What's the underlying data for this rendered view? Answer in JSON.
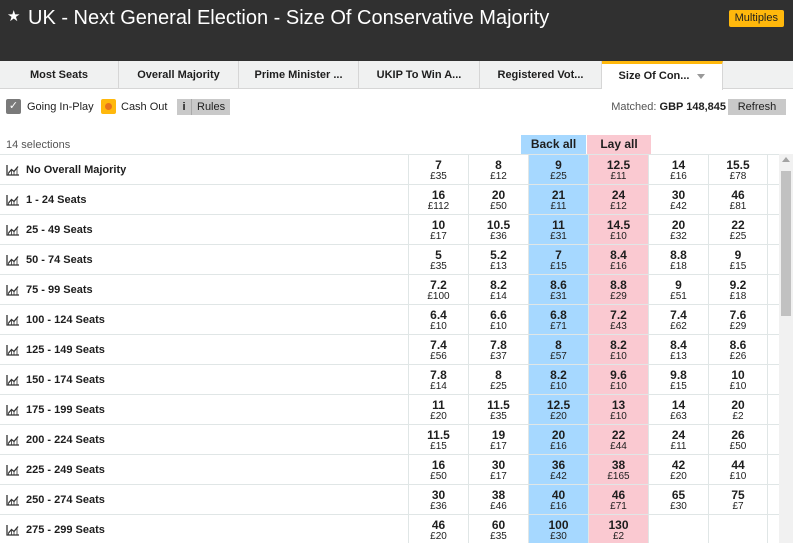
{
  "header": {
    "star_icon": "star-icon",
    "title": "UK - Next General Election - Size Of Conservative Majority",
    "multiples_label": "Multiples"
  },
  "tabs": [
    {
      "label": "Most Seats",
      "active": false
    },
    {
      "label": "Overall Majority",
      "active": false
    },
    {
      "label": "Prime Minister ...",
      "active": false
    },
    {
      "label": "UKIP To Win A...",
      "active": false
    },
    {
      "label": "Registered Vot...",
      "active": false
    },
    {
      "label": "Size Of Con...",
      "active": true
    }
  ],
  "toolbar": {
    "going_inplay_label": "Going In-Play",
    "cashout_label": "Cash Out",
    "rules_i": "i",
    "rules_label": "Rules",
    "matched_label": "Matched:",
    "matched_value": "GBP 148,845",
    "refresh_label": "Refresh"
  },
  "market": {
    "selections_count": "14 selections",
    "back_all_label": "Back all",
    "lay_all_label": "Lay all",
    "colors": {
      "back": "#a6d8ff",
      "lay": "#fac9d1"
    },
    "runners": [
      {
        "name": "No Overall Majority",
        "odds": [
          [
            "7",
            "£35"
          ],
          [
            "8",
            "£12"
          ],
          [
            "9",
            "£25"
          ],
          [
            "12.5",
            "£11"
          ],
          [
            "14",
            "£16"
          ],
          [
            "15.5",
            "£78"
          ]
        ]
      },
      {
        "name": "1 - 24 Seats",
        "odds": [
          [
            "16",
            "£112"
          ],
          [
            "20",
            "£50"
          ],
          [
            "21",
            "£11"
          ],
          [
            "24",
            "£12"
          ],
          [
            "30",
            "£42"
          ],
          [
            "46",
            "£81"
          ]
        ]
      },
      {
        "name": "25 - 49 Seats",
        "odds": [
          [
            "10",
            "£17"
          ],
          [
            "10.5",
            "£36"
          ],
          [
            "11",
            "£31"
          ],
          [
            "14.5",
            "£10"
          ],
          [
            "20",
            "£32"
          ],
          [
            "22",
            "£25"
          ]
        ]
      },
      {
        "name": "50 - 74 Seats",
        "odds": [
          [
            "5",
            "£35"
          ],
          [
            "5.2",
            "£13"
          ],
          [
            "7",
            "£15"
          ],
          [
            "8.4",
            "£16"
          ],
          [
            "8.8",
            "£18"
          ],
          [
            "9",
            "£15"
          ]
        ]
      },
      {
        "name": "75 - 99 Seats",
        "odds": [
          [
            "7.2",
            "£100"
          ],
          [
            "8.2",
            "£14"
          ],
          [
            "8.6",
            "£31"
          ],
          [
            "8.8",
            "£29"
          ],
          [
            "9",
            "£51"
          ],
          [
            "9.2",
            "£18"
          ]
        ]
      },
      {
        "name": "100 - 124 Seats",
        "odds": [
          [
            "6.4",
            "£10"
          ],
          [
            "6.6",
            "£10"
          ],
          [
            "6.8",
            "£71"
          ],
          [
            "7.2",
            "£43"
          ],
          [
            "7.4",
            "£62"
          ],
          [
            "7.6",
            "£29"
          ]
        ]
      },
      {
        "name": "125 - 149 Seats",
        "odds": [
          [
            "7.4",
            "£56"
          ],
          [
            "7.8",
            "£37"
          ],
          [
            "8",
            "£57"
          ],
          [
            "8.2",
            "£10"
          ],
          [
            "8.4",
            "£13"
          ],
          [
            "8.6",
            "£26"
          ]
        ]
      },
      {
        "name": "150 - 174 Seats",
        "odds": [
          [
            "7.8",
            "£14"
          ],
          [
            "8",
            "£25"
          ],
          [
            "8.2",
            "£10"
          ],
          [
            "9.6",
            "£10"
          ],
          [
            "9.8",
            "£15"
          ],
          [
            "10",
            "£10"
          ]
        ]
      },
      {
        "name": "175 - 199 Seats",
        "odds": [
          [
            "11",
            "£20"
          ],
          [
            "11.5",
            "£35"
          ],
          [
            "12.5",
            "£20"
          ],
          [
            "13",
            "£10"
          ],
          [
            "14",
            "£63"
          ],
          [
            "20",
            "£2"
          ]
        ]
      },
      {
        "name": "200 - 224 Seats",
        "odds": [
          [
            "11.5",
            "£15"
          ],
          [
            "19",
            "£17"
          ],
          [
            "20",
            "£16"
          ],
          [
            "22",
            "£44"
          ],
          [
            "24",
            "£11"
          ],
          [
            "26",
            "£50"
          ]
        ]
      },
      {
        "name": "225 - 249 Seats",
        "odds": [
          [
            "16",
            "£50"
          ],
          [
            "30",
            "£17"
          ],
          [
            "36",
            "£42"
          ],
          [
            "38",
            "£165"
          ],
          [
            "42",
            "£20"
          ],
          [
            "44",
            "£10"
          ]
        ]
      },
      {
        "name": "250 - 274 Seats",
        "odds": [
          [
            "30",
            "£36"
          ],
          [
            "38",
            "£46"
          ],
          [
            "40",
            "£16"
          ],
          [
            "46",
            "£71"
          ],
          [
            "65",
            "£30"
          ],
          [
            "75",
            "£7"
          ]
        ]
      },
      {
        "name": "275 - 299 Seats",
        "odds": [
          [
            "46",
            "£20"
          ],
          [
            "60",
            "£35"
          ],
          [
            "100",
            "£30"
          ],
          [
            "130",
            "£2"
          ],
          [
            "",
            ""
          ],
          [
            "",
            ""
          ]
        ]
      }
    ]
  }
}
